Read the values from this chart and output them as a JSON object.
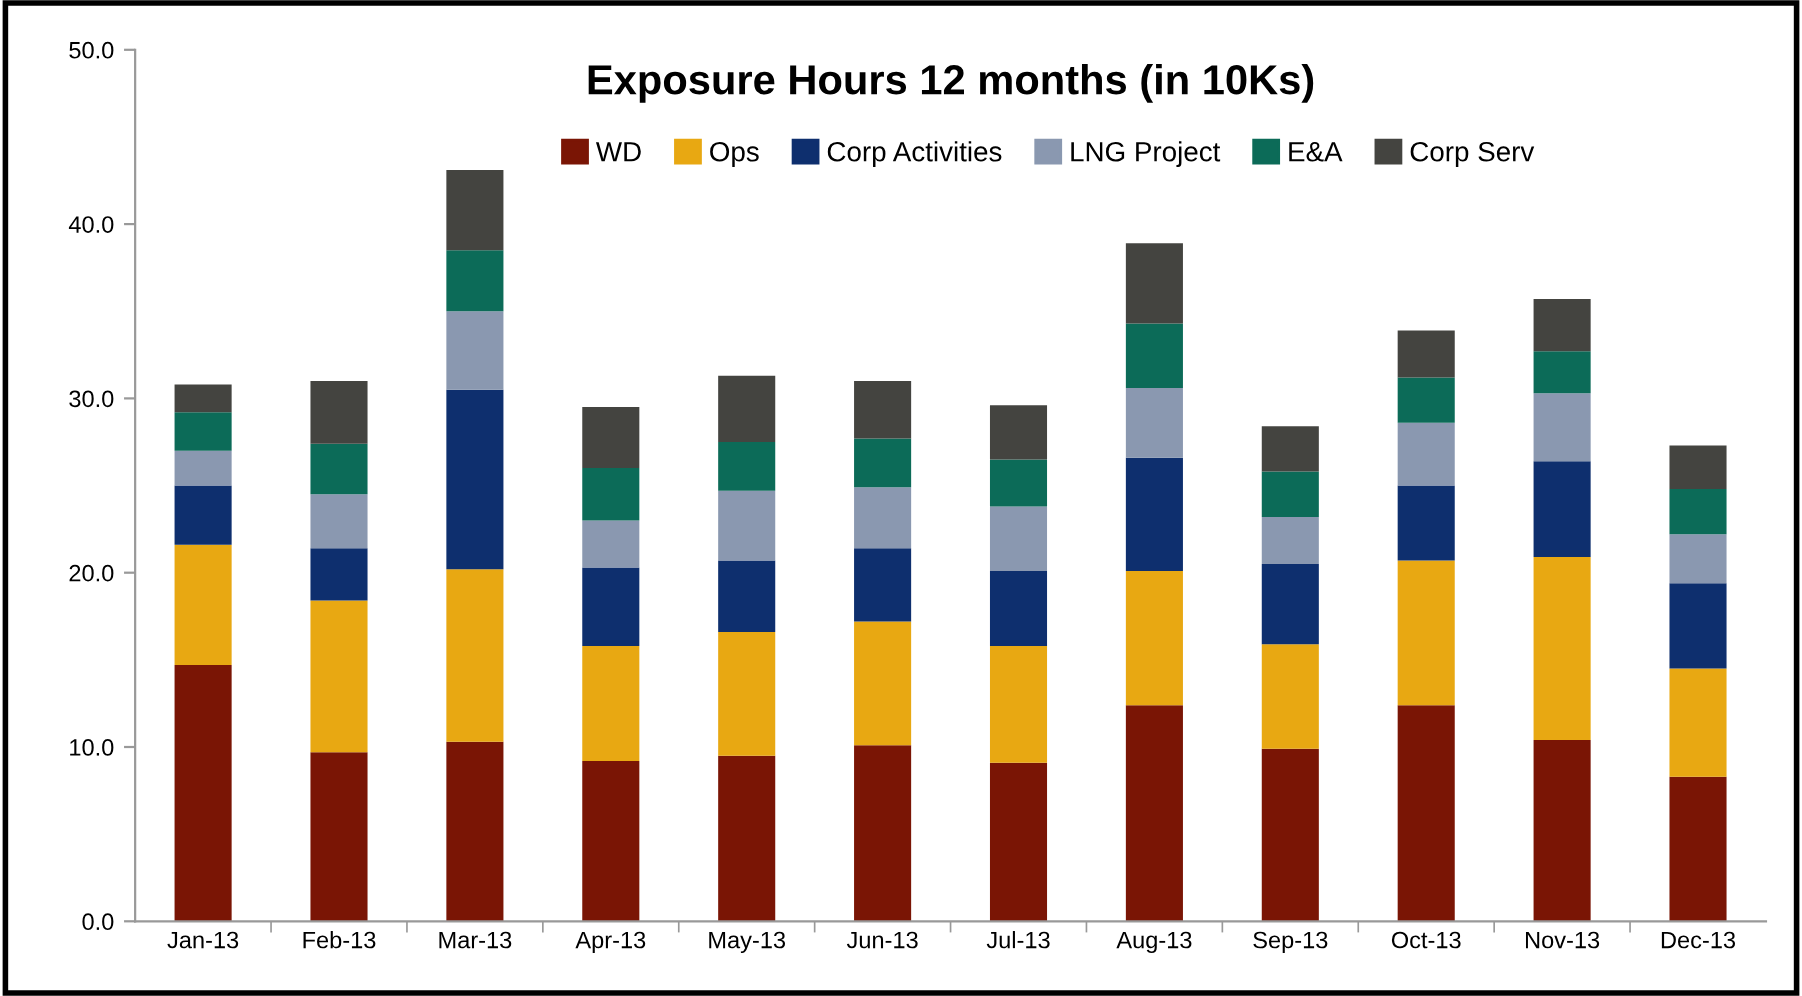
{
  "chart_data": {
    "type": "bar",
    "stacked": true,
    "title": "Exposure Hours 12 months (in 10Ks)",
    "categories": [
      "Jan-13",
      "Feb-13",
      "Mar-13",
      "Apr-13",
      "May-13",
      "Jun-13",
      "Jul-13",
      "Aug-13",
      "Sep-13",
      "Oct-13",
      "Nov-13",
      "Dec-13"
    ],
    "series": [
      {
        "name": "WD",
        "color": "#7a1505",
        "values": [
          14.7,
          9.7,
          10.3,
          9.2,
          9.5,
          10.1,
          9.1,
          12.4,
          9.9,
          12.4,
          10.4,
          8.3
        ]
      },
      {
        "name": "Ops",
        "color": "#e8a812",
        "values": [
          6.9,
          8.7,
          9.9,
          6.6,
          7.1,
          7.1,
          6.7,
          7.7,
          6.0,
          8.3,
          10.5,
          6.2
        ]
      },
      {
        "name": "Corp Activities",
        "color": "#0e2f6e",
        "values": [
          3.4,
          3.0,
          10.3,
          4.5,
          4.1,
          4.2,
          4.3,
          6.5,
          4.6,
          4.3,
          5.5,
          4.9
        ]
      },
      {
        "name": "LNG Project",
        "color": "#8a98b0",
        "values": [
          2.0,
          3.1,
          4.5,
          2.7,
          4.0,
          3.5,
          3.7,
          4.0,
          2.7,
          3.6,
          3.9,
          2.8
        ]
      },
      {
        "name": "E&A",
        "color": "#0c6b58",
        "values": [
          2.2,
          2.9,
          3.5,
          3.0,
          2.8,
          2.8,
          2.7,
          3.7,
          2.6,
          2.6,
          2.4,
          2.6
        ]
      },
      {
        "name": "Corp Serv",
        "color": "#444440",
        "values": [
          1.6,
          3.6,
          4.6,
          3.5,
          3.8,
          3.3,
          3.1,
          4.6,
          2.6,
          2.7,
          3.0,
          2.5
        ]
      }
    ],
    "ylim": [
      0,
      50
    ],
    "yticks": [
      {
        "value": 0,
        "label": "0.0"
      },
      {
        "value": 10,
        "label": "10.0"
      },
      {
        "value": 20,
        "label": "20.0"
      },
      {
        "value": 30,
        "label": "30.0"
      },
      {
        "value": 40,
        "label": "40.0"
      },
      {
        "value": 50,
        "label": "50.0"
      }
    ],
    "grid": false,
    "legend": "top"
  }
}
